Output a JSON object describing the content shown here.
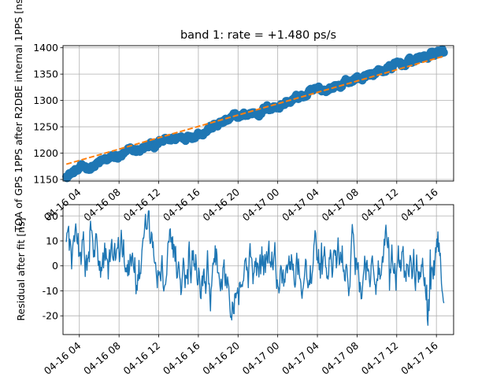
{
  "chart_data": [
    {
      "type": "scatter",
      "title": "band 1: rate = +1.480 ps/s",
      "xlabel": "",
      "ylabel": "TOA of GPS 1PPS after R2DBE internal 1PPS [ns]",
      "xlim": [
        "2017-04-16 02:21",
        "2017-04-17 17:44"
      ],
      "ylim": [
        1147,
        1404
      ],
      "grid": true,
      "x_ticks": [
        "04-16 04",
        "04-16 08",
        "04-16 12",
        "04-16 16",
        "04-16 20",
        "04-17 00",
        "04-17 04",
        "04-17 08",
        "04-17 12",
        "04-17 16"
      ],
      "y_ticks": [
        1150,
        1200,
        1250,
        1300,
        1350,
        1400
      ],
      "series": [
        {
          "kind": "markers",
          "color": "#1f77b4",
          "x_start": "2017-04-16 02:41",
          "x_end": "2017-04-17 16:45",
          "y_start": 1160,
          "y_end": 1395
        },
        {
          "kind": "fit-line",
          "style": "dashed",
          "color": "#ff7f0e",
          "x_start": "2017-04-16 02:41",
          "x_end": "2017-04-17 16:45",
          "y_start": 1179,
          "y_end": 1384
        }
      ]
    },
    {
      "type": "line",
      "title": "",
      "xlabel": "",
      "ylabel": "Residual after fit [ns]",
      "xlim": [
        "2017-04-16 02:21",
        "2017-04-17 17:44"
      ],
      "ylim": [
        -27.5,
        24.5
      ],
      "grid": true,
      "x_ticks": [
        "04-16 04",
        "04-16 08",
        "04-16 12",
        "04-16 16",
        "04-16 20",
        "04-17 00",
        "04-17 04",
        "04-17 08",
        "04-17 12",
        "04-17 16"
      ],
      "y_ticks": [
        -20,
        -10,
        0,
        10,
        20
      ],
      "series": [
        {
          "color": "#1f77b4",
          "x_start": "2017-04-16 02:41",
          "x_end": "2017-04-17 16:45",
          "y_min": -26,
          "y_max": 22
        }
      ]
    }
  ]
}
